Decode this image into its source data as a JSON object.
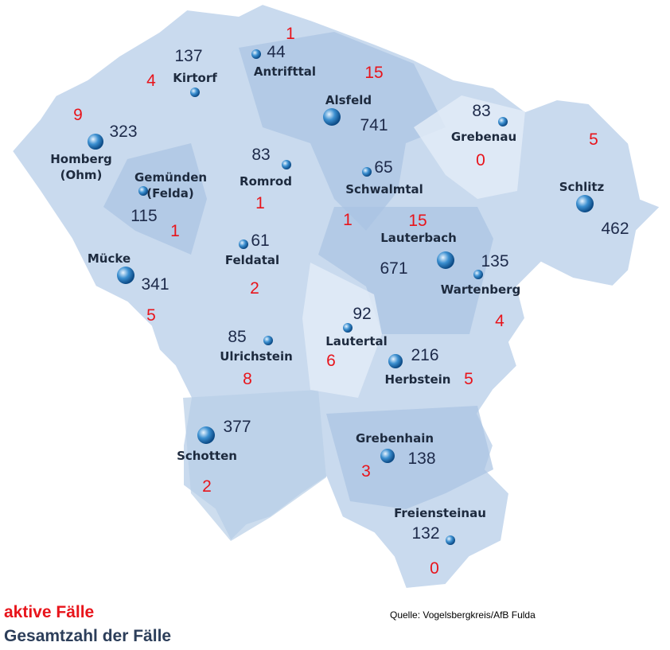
{
  "regions": [
    {
      "name": "Antrifttal",
      "total": 44,
      "active": 1
    },
    {
      "name": "Kirtorf",
      "total": 137,
      "active": 4
    },
    {
      "name": "Alsfeld",
      "total": 741,
      "active": 15
    },
    {
      "name": "Homberg (Ohm)",
      "total": 323,
      "active": 9
    },
    {
      "name": "Gemünden (Felda)",
      "total": 115,
      "active": 1
    },
    {
      "name": "Romrod",
      "total": 83,
      "active": 1
    },
    {
      "name": "Schwalmtal",
      "total": 65,
      "active": 1
    },
    {
      "name": "Grebenau",
      "total": 83,
      "active": 0
    },
    {
      "name": "Schlitz",
      "total": 462,
      "active": 5
    },
    {
      "name": "Lauterbach",
      "total": 671,
      "active": 15
    },
    {
      "name": "Mücke",
      "total": 341,
      "active": 5
    },
    {
      "name": "Feldatal",
      "total": 61,
      "active": 2
    },
    {
      "name": "Wartenberg",
      "total": 135,
      "active": 4
    },
    {
      "name": "Lautertal",
      "total": 92,
      "active": 6
    },
    {
      "name": "Ulrichstein",
      "total": 85,
      "active": 8
    },
    {
      "name": "Herbstein",
      "total": 216,
      "active": 5
    },
    {
      "name": "Schotten",
      "total": 377,
      "active": 2
    },
    {
      "name": "Grebenhain",
      "total": 138,
      "active": 3
    },
    {
      "name": "Freiensteinau",
      "total": 132,
      "active": 0
    }
  ],
  "legend": {
    "active": "aktive Fälle",
    "total": "Gesamtzahl der Fälle"
  },
  "source": "Quelle: Vogelsbergkreis/AfB Fulda"
}
